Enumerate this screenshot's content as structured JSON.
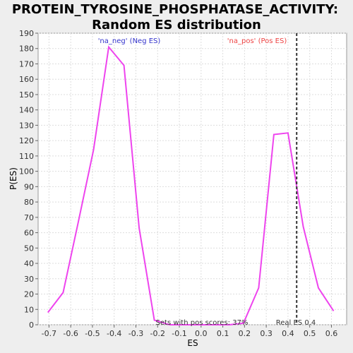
{
  "chart_data": {
    "type": "line",
    "title_line1": "PROTEIN_TYROSINE_PHOSPHATASE_ACTIVITY:",
    "title_line2": "Random ES distribution",
    "xlabel": "ES",
    "ylabel": "P(ES)",
    "xlim": [
      -0.75,
      0.67
    ],
    "ylim": [
      0,
      190
    ],
    "x_ticks": [
      -0.7,
      -0.6,
      -0.5,
      -0.4,
      -0.3,
      -0.2,
      -0.1,
      0.0,
      0.1,
      0.2,
      0.3,
      0.4,
      0.5,
      0.6
    ],
    "x_tick_labels": [
      "-0.7",
      "-0.6",
      "-0.5",
      "-0.4",
      "-0.3",
      "-0.2",
      "-0.1",
      "0.0",
      "0.1",
      "0.2",
      "0.3",
      "0.4",
      "0.5",
      "0.6"
    ],
    "y_ticks": [
      0,
      10,
      20,
      30,
      40,
      50,
      60,
      70,
      80,
      90,
      100,
      110,
      120,
      130,
      140,
      150,
      160,
      170,
      180,
      190
    ],
    "grid": true,
    "series": [
      {
        "color": "#ee44ee",
        "x": [
          -0.705,
          -0.635,
          -0.565,
          -0.495,
          -0.425,
          -0.355,
          -0.285,
          -0.215,
          -0.145,
          -0.075,
          0.0,
          0.06,
          0.13,
          0.195,
          0.265,
          0.335,
          0.4,
          0.47,
          0.54,
          0.61
        ],
        "y": [
          8,
          21,
          67,
          114,
          181,
          169,
          63,
          3,
          0,
          0,
          0,
          0,
          0,
          1,
          24,
          124,
          125,
          64,
          24,
          9
        ]
      }
    ],
    "marker_line": {
      "x": 0.44,
      "label": "Real ES 0.4",
      "color": "#333333"
    },
    "annotations": {
      "neg": {
        "text": "'na_neg' (Neg ES)",
        "color": "#3333cc"
      },
      "pos": {
        "text": "'na_pos' (Pos ES)",
        "color": "#ee4444"
      },
      "pos_scores": {
        "text": "Sets with pos scores: 37%",
        "color": "#333333"
      }
    },
    "plot_bg": "#ffffff",
    "grid_color": "#dddddd"
  }
}
